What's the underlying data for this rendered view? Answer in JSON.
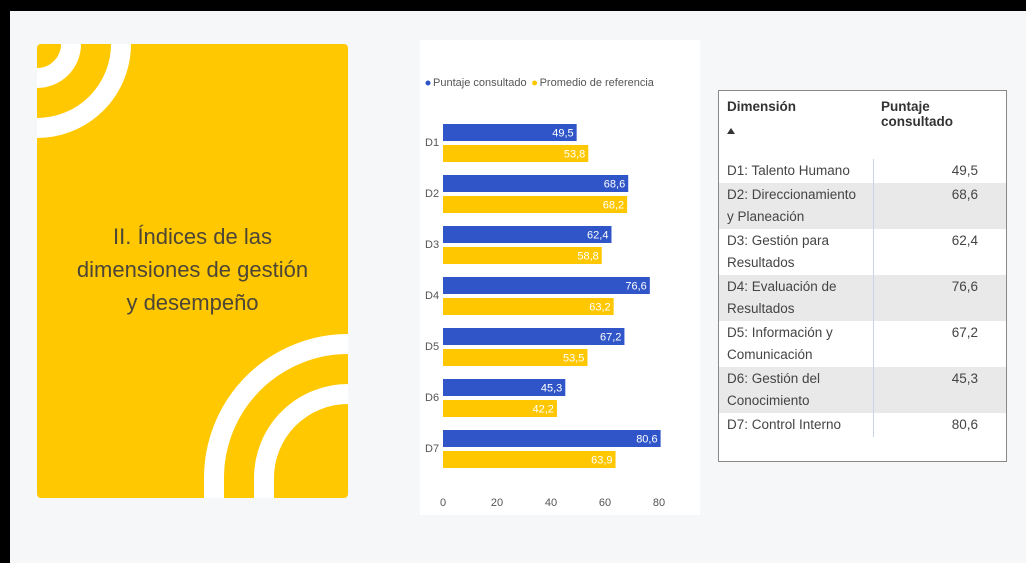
{
  "card": {
    "title_lines": [
      "II. Índices de las",
      "dimensiones de gestión",
      "y desempeño"
    ]
  },
  "chart_data": {
    "type": "hbar",
    "categories": [
      "D1",
      "D2",
      "D3",
      "D4",
      "D5",
      "D6",
      "D7"
    ],
    "series": [
      {
        "name": "Puntaje consultado",
        "color": "#2f55c8",
        "values": [
          49.5,
          68.6,
          62.4,
          76.6,
          67.2,
          45.3,
          80.6
        ],
        "value_labels": [
          "49,5",
          "68,6",
          "62,4",
          "76,6",
          "67,2",
          "45,3",
          "80,6"
        ]
      },
      {
        "name": "Promedio de referencia",
        "color": "#ffc700",
        "values": [
          53.8,
          68.2,
          58.8,
          63.2,
          53.5,
          42.2,
          63.9
        ],
        "value_labels": [
          "53,8",
          "68,2",
          "58,8",
          "63,2",
          "53,5",
          "42,2",
          "63,9"
        ]
      }
    ],
    "xlim": [
      0,
      80
    ],
    "xticks": [
      0,
      20,
      40,
      60,
      80
    ]
  },
  "table": {
    "header": [
      "Dimensión",
      "Puntaje consultado"
    ],
    "rows": [
      [
        "D1: Talento Humano",
        "49,5"
      ],
      [
        "D2: Direccionamiento y Planeación",
        "68,6"
      ],
      [
        "D3: Gestión para Resultados",
        "62,4"
      ],
      [
        "D4: Evaluación de Resultados",
        "76,6"
      ],
      [
        "D5: Información y Comunicación",
        "67,2"
      ],
      [
        "D6: Gestión del Conocimiento",
        "45,3"
      ],
      [
        "D7: Control Interno",
        "80,6"
      ]
    ]
  }
}
